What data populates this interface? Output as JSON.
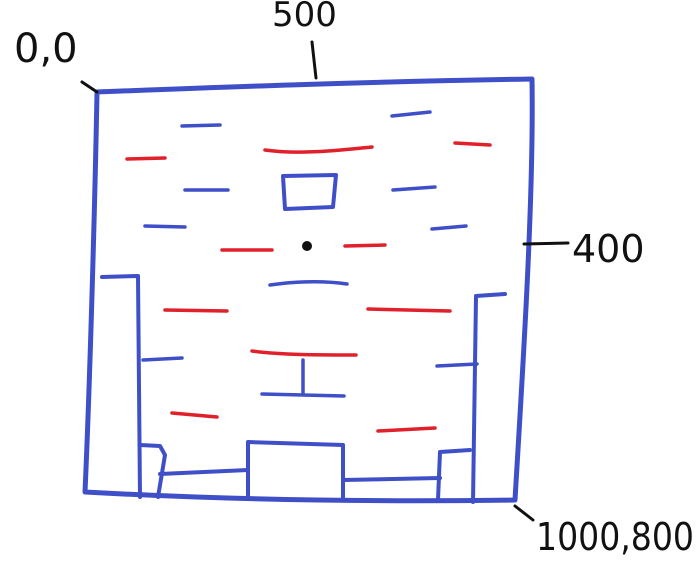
{
  "labels": {
    "top_left": "0,0",
    "top_center": "500",
    "right_middle": "400",
    "bottom_right": "1000,800"
  },
  "colors": {
    "blue": "#3f4fc8",
    "red": "#e0202a",
    "black": "#111111",
    "background": "#ffffff"
  }
}
